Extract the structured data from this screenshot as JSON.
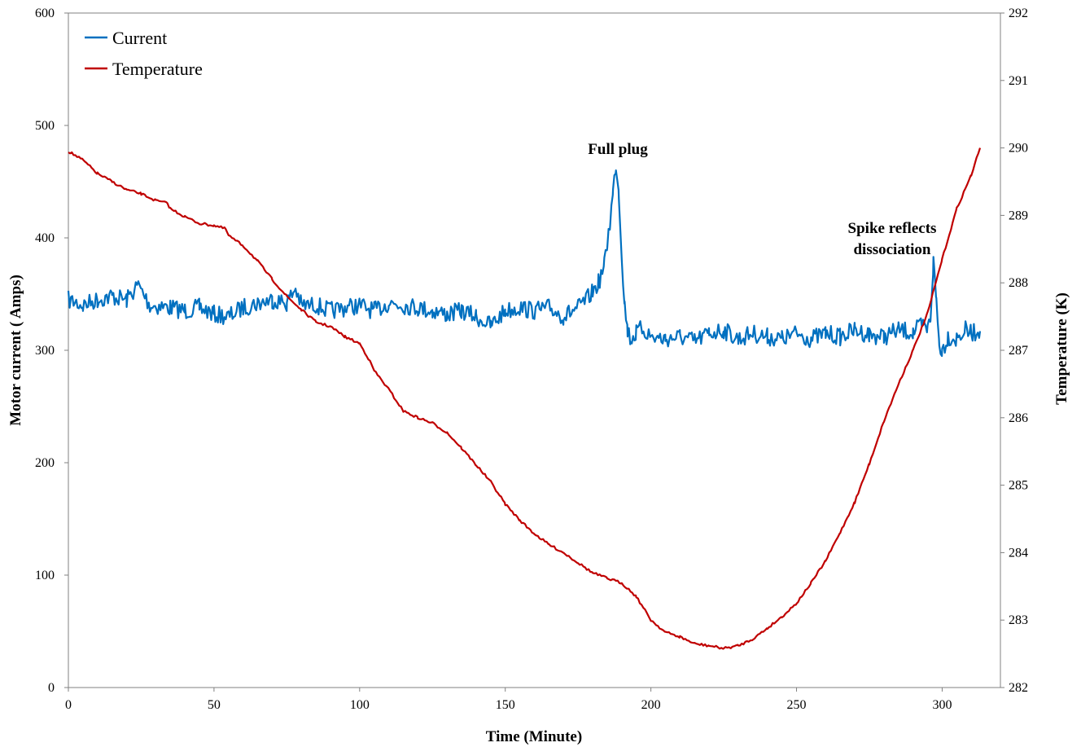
{
  "chart_data": {
    "type": "line",
    "xlabel": "Time (Minute)",
    "ylabel_left": "Motor current ( Amps)",
    "ylabel_right": "Temperature (K)",
    "xlim": [
      0,
      320
    ],
    "ylim_left": [
      0,
      600
    ],
    "ylim_right": [
      282,
      292
    ],
    "x_ticks": [
      0,
      50,
      100,
      150,
      200,
      250,
      300
    ],
    "y_left_ticks": [
      0,
      100,
      200,
      300,
      400,
      500,
      600
    ],
    "y_right_ticks": [
      282,
      283,
      284,
      285,
      286,
      287,
      288,
      289,
      290,
      291,
      292
    ],
    "grid": false,
    "legend_position": "top-left",
    "series": [
      {
        "name": "Current",
        "axis": "left",
        "color": "#0070C0",
        "x": [
          0,
          5,
          10,
          15,
          20,
          24,
          28,
          35,
          40,
          45,
          50,
          55,
          60,
          65,
          70,
          75,
          78,
          80,
          85,
          90,
          95,
          100,
          105,
          110,
          115,
          120,
          125,
          130,
          135,
          140,
          145,
          150,
          155,
          160,
          165,
          170,
          175,
          178,
          180,
          182,
          184,
          185,
          186,
          187,
          188,
          189,
          190,
          191,
          192,
          193,
          195,
          197,
          200,
          205,
          210,
          215,
          220,
          225,
          230,
          235,
          240,
          245,
          250,
          255,
          260,
          265,
          270,
          275,
          280,
          285,
          290,
          293,
          295,
          296,
          297,
          298,
          299,
          300,
          302,
          305,
          308,
          310,
          313
        ],
        "values": [
          345,
          340,
          345,
          348,
          345,
          358,
          340,
          338,
          335,
          338,
          332,
          330,
          338,
          342,
          345,
          342,
          355,
          340,
          340,
          335,
          338,
          340,
          335,
          342,
          340,
          338,
          335,
          332,
          335,
          330,
          322,
          335,
          338,
          335,
          338,
          330,
          338,
          345,
          352,
          360,
          375,
          395,
          415,
          440,
          466,
          440,
          385,
          340,
          318,
          310,
          315,
          320,
          312,
          310,
          312,
          308,
          315,
          318,
          310,
          315,
          312,
          310,
          315,
          310,
          315,
          312,
          318,
          314,
          312,
          318,
          316,
          322,
          318,
          330,
          378,
          345,
          305,
          300,
          312,
          310,
          318,
          315,
          317
        ]
      },
      {
        "name": "Temperature",
        "axis": "right",
        "color": "#C00000",
        "x": [
          0,
          5,
          10,
          15,
          20,
          25,
          30,
          34,
          35,
          40,
          45,
          50,
          54,
          55,
          60,
          65,
          70,
          75,
          80,
          85,
          90,
          95,
          100,
          103,
          105,
          110,
          115,
          120,
          125,
          130,
          135,
          140,
          145,
          150,
          155,
          160,
          165,
          170,
          175,
          180,
          185,
          190,
          195,
          200,
          205,
          210,
          215,
          220,
          225,
          230,
          235,
          240,
          245,
          250,
          255,
          260,
          265,
          270,
          275,
          280,
          285,
          290,
          295,
          300,
          305,
          310,
          313
        ],
        "values": [
          289.95,
          289.82,
          289.62,
          289.5,
          289.38,
          289.32,
          289.22,
          289.18,
          289.1,
          288.98,
          288.88,
          288.85,
          288.8,
          288.7,
          288.55,
          288.32,
          288.05,
          287.8,
          287.6,
          287.42,
          287.35,
          287.2,
          287.1,
          286.88,
          286.7,
          286.42,
          286.1,
          286.0,
          285.92,
          285.78,
          285.55,
          285.3,
          285.05,
          284.72,
          284.48,
          284.28,
          284.12,
          284.0,
          283.85,
          283.7,
          283.62,
          283.55,
          283.35,
          283.0,
          282.82,
          282.75,
          282.65,
          282.62,
          282.58,
          282.62,
          282.72,
          282.88,
          283.05,
          283.25,
          283.55,
          283.88,
          284.3,
          284.75,
          285.32,
          285.95,
          286.5,
          287.0,
          287.55,
          288.35,
          289.1,
          289.6,
          290.0
        ]
      }
    ],
    "annotations": [
      {
        "text": "Full plug"
      },
      {
        "text": "Spike reflects"
      },
      {
        "text": "dissociation"
      }
    ]
  }
}
